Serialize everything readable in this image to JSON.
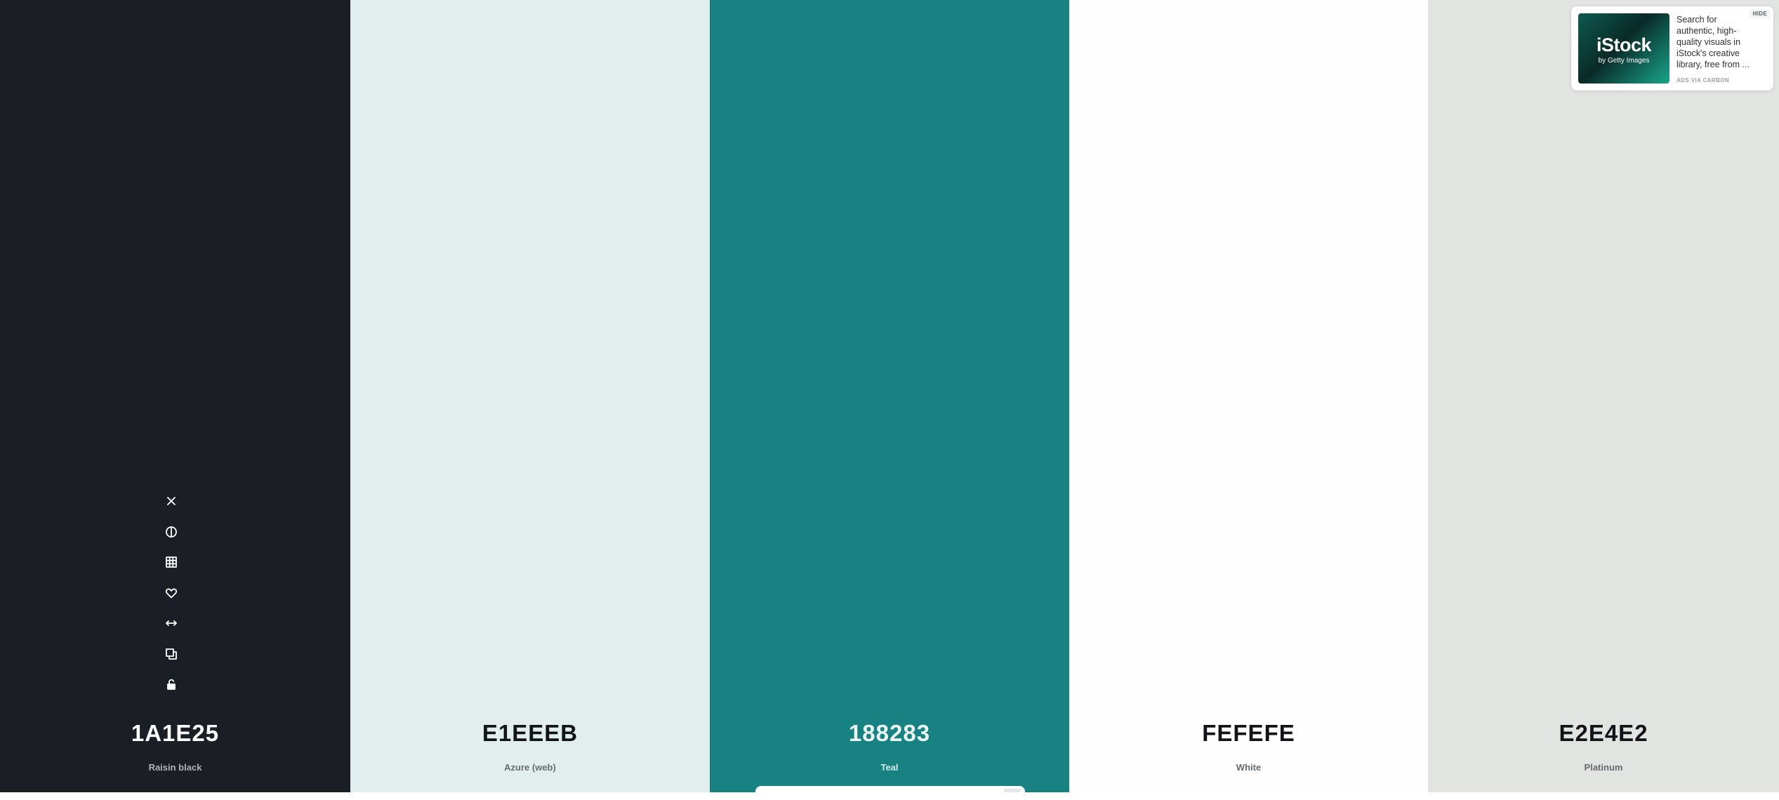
{
  "swatches": [
    {
      "hex": "1A1E25",
      "name": "Raisin black",
      "color": "#1A1E25"
    },
    {
      "hex": "E1EEEB",
      "name": "Azure (web)",
      "color": "#E1EEEB"
    },
    {
      "hex": "188283",
      "name": "Teal",
      "color": "#188283"
    },
    {
      "hex": "FEFEFE",
      "name": "White",
      "color": "#FEFEFE"
    },
    {
      "hex": "E2E4E2",
      "name": "Platinum",
      "color": "#E2E4E2"
    }
  ],
  "tools": [
    {
      "icon": "close-icon"
    },
    {
      "icon": "contrast-icon"
    },
    {
      "icon": "grid-shades-icon"
    },
    {
      "icon": "heart-icon"
    },
    {
      "icon": "drag-arrows-icon"
    },
    {
      "icon": "copy-icon"
    },
    {
      "icon": "unlock-icon"
    }
  ],
  "ad": {
    "brand": "iStock",
    "brand_sub": "by Getty Images",
    "text": "Search for authentic, high-quality visuals in iStock's creative library, free from ...",
    "via": "ADS VIA CARBON",
    "hide_label": "HIDE"
  }
}
